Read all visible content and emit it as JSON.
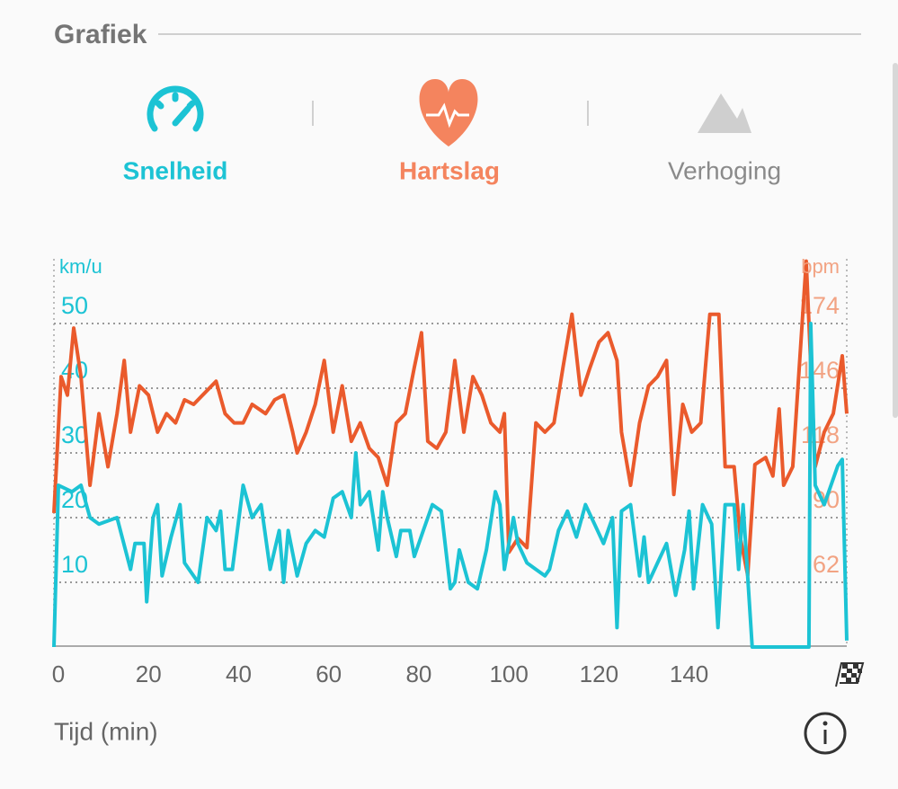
{
  "header": {
    "title": "Grafiek"
  },
  "tabs": [
    "Snelheid",
    "Hartslag",
    "Verhoging"
  ],
  "chart_data": {
    "type": "line",
    "xlabel": "Tijd (min)",
    "ylabel": "km/u",
    "y2label": "bpm",
    "xlim": [
      0,
      176
    ],
    "xticks": [
      0,
      20,
      40,
      60,
      80,
      100,
      120,
      140
    ],
    "ylim": [
      0,
      60
    ],
    "yticks": [
      10,
      20,
      30,
      40,
      50
    ],
    "y2lim": [
      34,
      202
    ],
    "y2ticks": [
      62,
      90,
      118,
      146,
      174
    ],
    "grid": true,
    "series": [
      {
        "name": "Snelheid",
        "color": "#1cc3d4",
        "axis": "y",
        "x": [
          0,
          1,
          4,
          6,
          8,
          10,
          14,
          17,
          18,
          20,
          20.6,
          22,
          23,
          24,
          26,
          28,
          29,
          32,
          34,
          36,
          37,
          38,
          39.6,
          42,
          44,
          46,
          48,
          50,
          51,
          52,
          54,
          56,
          58,
          60,
          62,
          64,
          66,
          67,
          68,
          70,
          72,
          73,
          74,
          76,
          77,
          79,
          80,
          82,
          84,
          86,
          88,
          89,
          90,
          92,
          94,
          96,
          98,
          99,
          100,
          102,
          103,
          105,
          107,
          109,
          110,
          112,
          114,
          116,
          118,
          120,
          122,
          124,
          125,
          126,
          128,
          130,
          131,
          132,
          134,
          136,
          138,
          140,
          141,
          142,
          144,
          146,
          147.4,
          149,
          151,
          152,
          153,
          155,
          167.6,
          168,
          169,
          171,
          174,
          175,
          176
        ],
        "values": [
          0,
          25,
          24,
          25,
          20,
          19,
          20,
          12,
          16,
          16,
          7,
          20,
          22,
          11,
          17,
          22,
          13,
          10,
          20,
          18,
          21,
          12,
          12,
          25,
          20,
          22,
          12,
          18,
          10,
          18,
          11,
          16,
          18,
          17,
          23,
          24,
          20,
          30,
          22,
          24,
          15,
          24,
          20,
          14,
          18,
          18,
          14,
          18,
          22,
          21,
          9,
          10,
          15,
          10,
          9,
          15,
          24,
          22,
          12,
          20,
          16,
          13,
          12,
          11,
          12,
          18,
          21,
          17,
          22,
          19,
          16,
          20,
          3,
          21,
          22,
          11,
          17,
          10,
          13,
          16,
          8,
          15,
          21,
          9,
          22,
          19,
          3,
          22,
          22,
          12,
          22,
          0,
          0,
          50,
          25,
          22,
          28,
          29,
          1
        ]
      },
      {
        "name": "Hartslag",
        "color": "#ea5a2c",
        "axis": "y2",
        "x": [
          0,
          1.6,
          3,
          4.4,
          6,
          8,
          10,
          12,
          14,
          15.6,
          17,
          19,
          21,
          23,
          25,
          27,
          29,
          31,
          33,
          36,
          38,
          40,
          42,
          44,
          47,
          49,
          51,
          53,
          54,
          56,
          58,
          60,
          62,
          64,
          66,
          68,
          70,
          72,
          74,
          76,
          78,
          80,
          81.6,
          83,
          85,
          87,
          89,
          91,
          93,
          95,
          97,
          99,
          100,
          101,
          103,
          105,
          107,
          109,
          111,
          113,
          115,
          117,
          119,
          121,
          123,
          125,
          126,
          128,
          130,
          132,
          134,
          136,
          137.6,
          139.6,
          141.6,
          143.6,
          145.6,
          147.6,
          149,
          151,
          152.4,
          154,
          155.6,
          158,
          159.6,
          161,
          162,
          164,
          167,
          169,
          171,
          173,
          175,
          176
        ],
        "values": [
          92,
          151,
          143,
          172,
          151,
          104,
          135,
          112,
          135,
          158,
          127,
          147,
          143,
          127,
          135,
          131,
          141,
          139,
          143,
          149,
          135,
          131,
          131,
          139,
          135,
          141,
          143,
          127,
          118,
          127,
          139,
          158,
          127,
          147,
          123,
          131,
          120,
          116,
          104,
          131,
          135,
          155,
          170,
          123,
          120,
          127,
          158,
          127,
          151,
          143,
          131,
          127,
          135,
          75,
          81,
          77,
          131,
          127,
          131,
          155,
          178,
          143,
          155,
          166,
          170,
          158,
          127,
          104,
          131,
          147,
          151,
          158,
          100,
          139,
          127,
          131,
          178,
          178,
          112,
          112,
          81,
          65,
          113,
          116,
          108,
          137,
          104,
          112,
          201,
          112,
          127,
          135,
          160,
          135
        ]
      }
    ]
  }
}
